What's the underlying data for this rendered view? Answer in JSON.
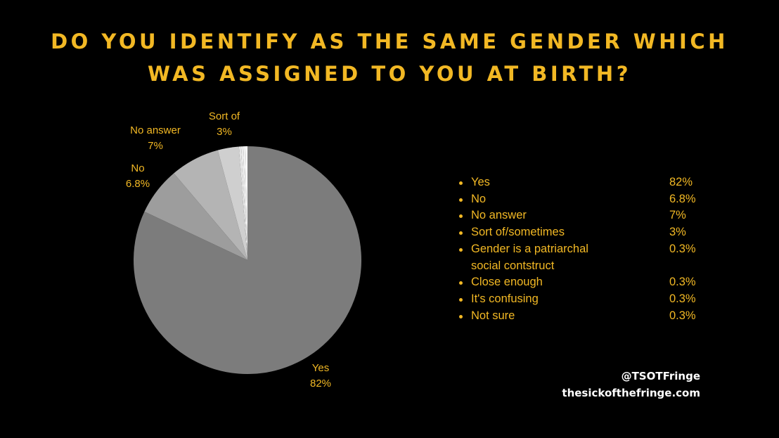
{
  "title": {
    "line1": "DO YOU IDENTIFY AS THE SAME GENDER WHICH",
    "line2": "WAS ASSIGNED TO YOU AT BIRTH?"
  },
  "chart_data": {
    "type": "pie",
    "title": "DO YOU IDENTIFY AS THE SAME GENDER WHICH WAS ASSIGNED TO YOU AT BIRTH?",
    "categories": [
      "Yes",
      "No",
      "No answer",
      "Sort of/sometimes",
      "Gender is a patriarchal social contstruct",
      "Close enough",
      "It's confusing",
      "Not sure"
    ],
    "values": [
      82,
      6.8,
      7,
      3,
      0.3,
      0.3,
      0.3,
      0.3
    ],
    "colors": [
      "#7c7c7c",
      "#9d9d9d",
      "#b4b4b4",
      "#cfcfcf",
      "#e6e6e6",
      "#ececec",
      "#f2f2f2",
      "#fafafa"
    ],
    "slice_labels": [
      {
        "name": "Yes",
        "value": "82%"
      },
      {
        "name": "No",
        "value": "6.8%"
      },
      {
        "name": "No answer",
        "value": "7%"
      },
      {
        "name": "Sort of",
        "value": "3%"
      }
    ],
    "legend_placement": "right"
  },
  "legend": [
    {
      "label": "Yes",
      "value": "82%"
    },
    {
      "label": "No",
      "value": "6.8%"
    },
    {
      "label": "No answer",
      "value": "7%"
    },
    {
      "label": "Sort of/sometimes",
      "value": "3%"
    },
    {
      "label": "Gender is a patriarchal social contstruct",
      "value": "0.3%"
    },
    {
      "label": "Close enough",
      "value": "0.3%"
    },
    {
      "label": "It's confusing",
      "value": "0.3%"
    },
    {
      "label": "Not sure",
      "value": "0.3%"
    }
  ],
  "footer": {
    "handle": "@TSOTFringe",
    "website": "thesickofthefringe.com"
  },
  "colors": {
    "background": "#000000",
    "accent": "#f2b824",
    "footer_text": "#ffffff"
  }
}
